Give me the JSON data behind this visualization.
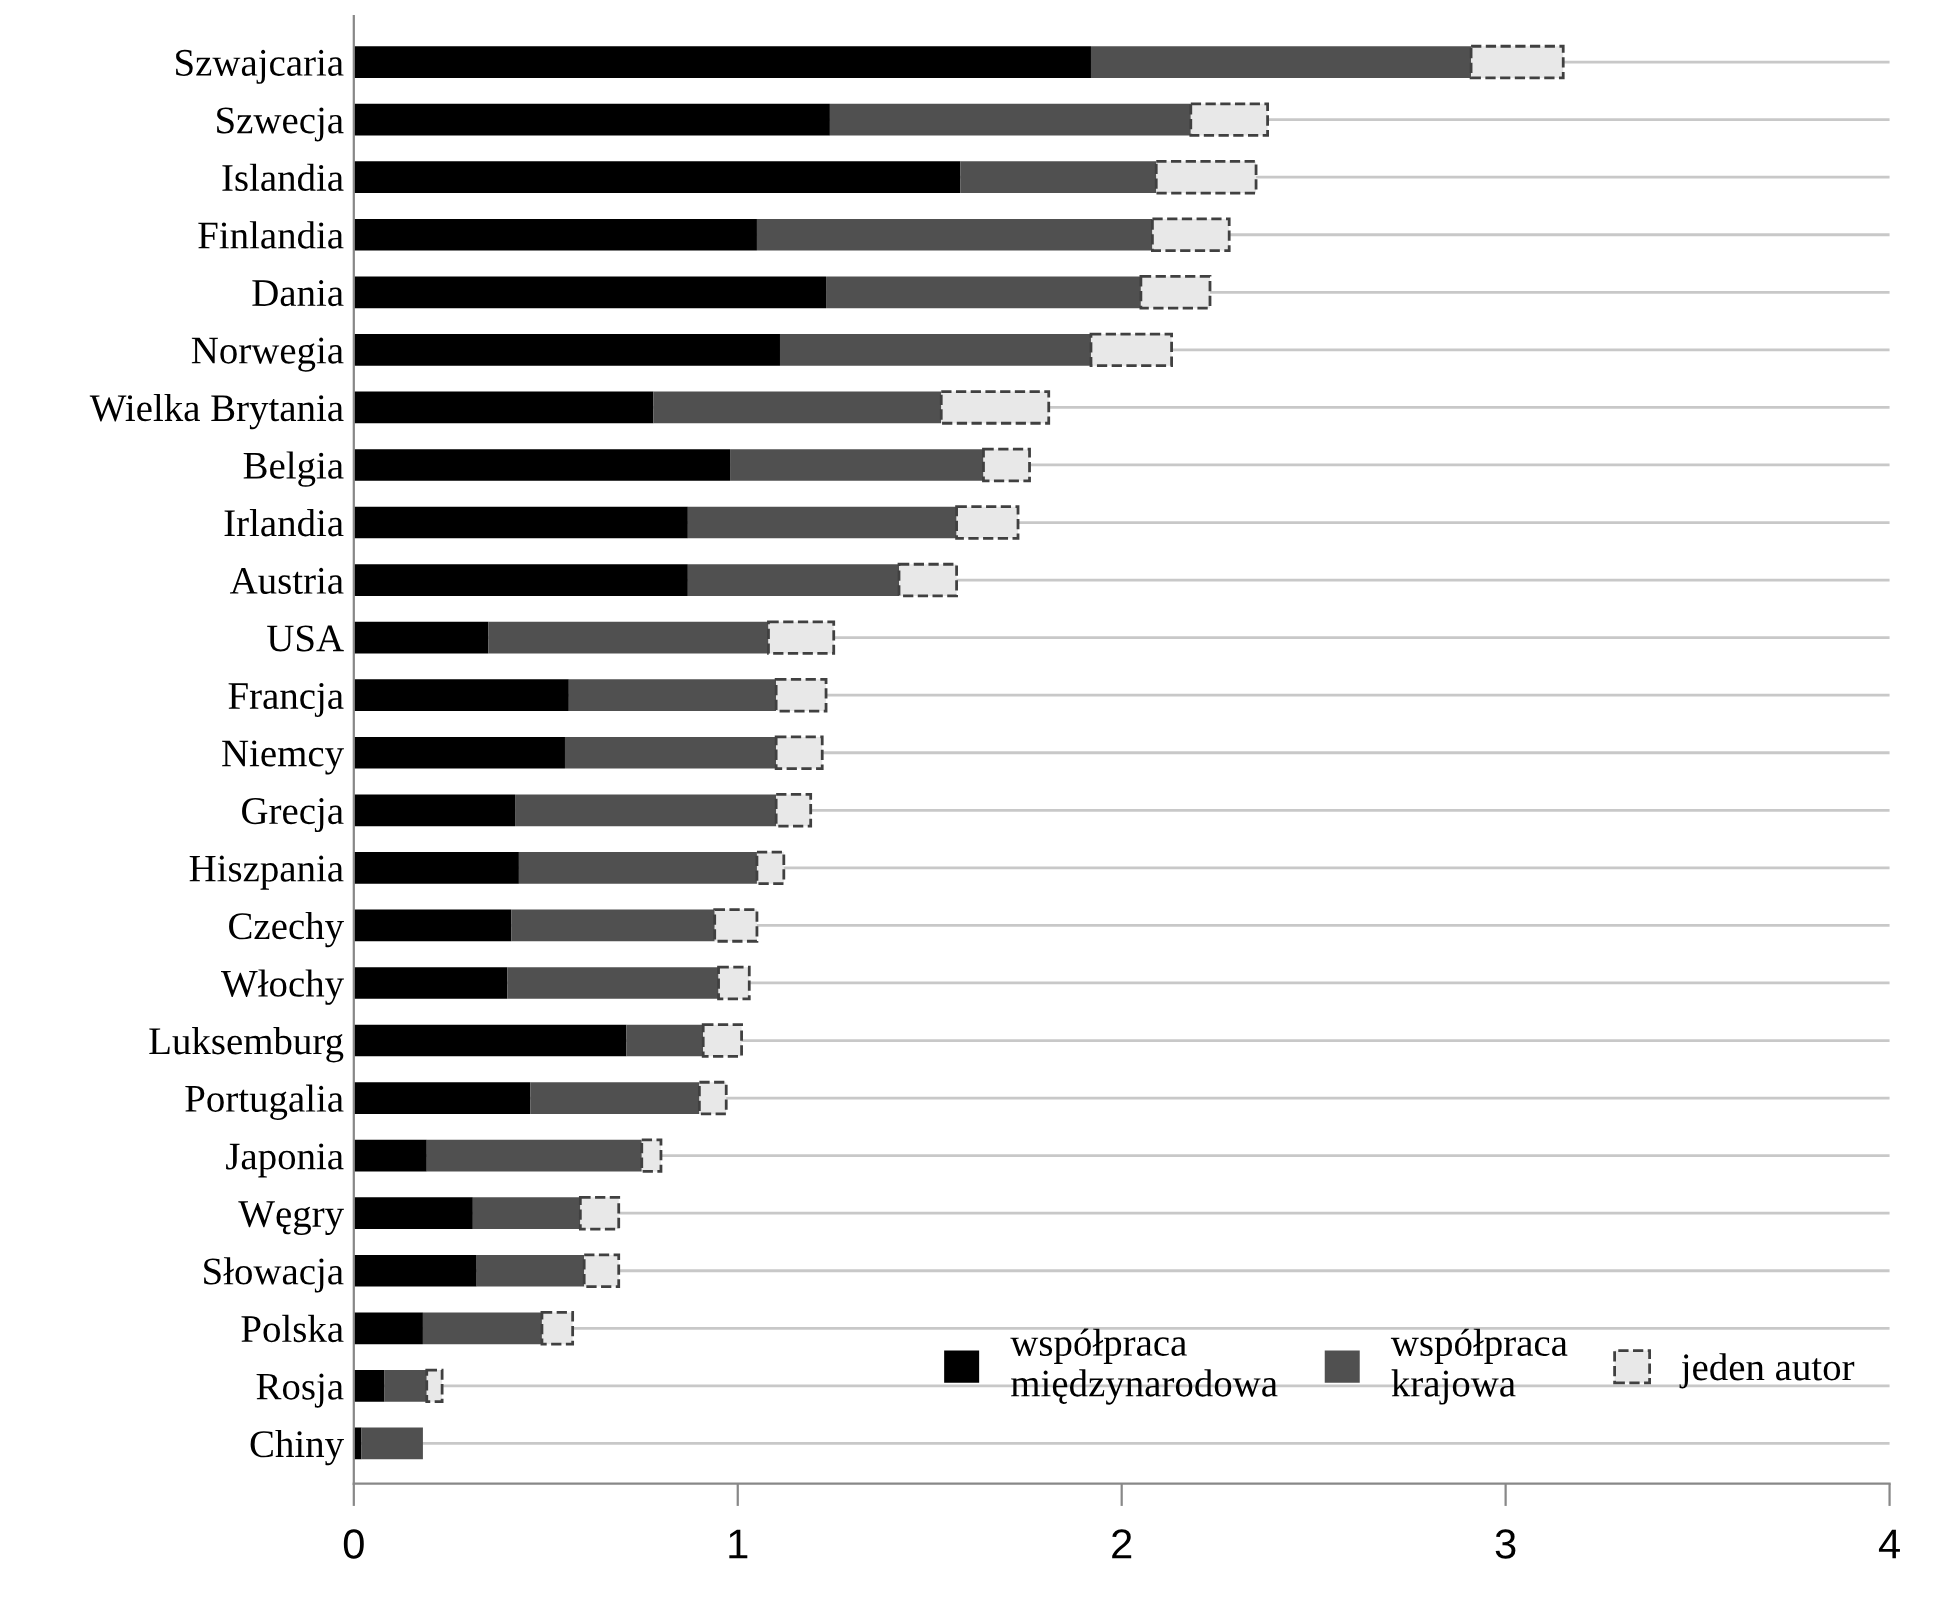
{
  "chart_data": {
    "type": "bar",
    "orientation": "horizontal",
    "stacked": true,
    "categories": [
      "Szwajcaria",
      "Szwecja",
      "Islandia",
      "Finlandia",
      "Dania",
      "Norwegia",
      "Wielka Brytania",
      "Belgia",
      "Irlandia",
      "Austria",
      "USA",
      "Francja",
      "Niemcy",
      "Grecja",
      "Hiszpania",
      "Czechy",
      "Włochy",
      "Luksemburg",
      "Portugalia",
      "Japonia",
      "Węgry",
      "Słowacja",
      "Polska",
      "Rosja",
      "Chiny"
    ],
    "series": [
      {
        "name": "współpraca\nmiędzynarodowa",
        "color": "#000000",
        "values": [
          1.92,
          1.24,
          1.58,
          1.05,
          1.23,
          1.11,
          0.78,
          0.98,
          0.87,
          0.87,
          0.35,
          0.56,
          0.55,
          0.42,
          0.43,
          0.41,
          0.4,
          0.71,
          0.46,
          0.19,
          0.31,
          0.32,
          0.18,
          0.08,
          0.02
        ]
      },
      {
        "name": "współpraca\nkrajowa",
        "color": "#505050",
        "values": [
          0.99,
          0.94,
          0.51,
          1.03,
          0.82,
          0.81,
          0.75,
          0.66,
          0.7,
          0.55,
          0.73,
          0.54,
          0.55,
          0.68,
          0.62,
          0.53,
          0.55,
          0.2,
          0.44,
          0.56,
          0.28,
          0.28,
          0.31,
          0.11,
          0.16
        ]
      },
      {
        "name": "jeden autor",
        "color": "#e8e8e8",
        "line_style": "dashed",
        "values": [
          0.24,
          0.2,
          0.26,
          0.2,
          0.18,
          0.21,
          0.28,
          0.12,
          0.16,
          0.15,
          0.17,
          0.13,
          0.12,
          0.09,
          0.07,
          0.11,
          0.08,
          0.1,
          0.07,
          0.05,
          0.1,
          0.09,
          0.08,
          0.04,
          null
        ]
      }
    ],
    "xlim": [
      0,
      4
    ],
    "xticks": [
      0,
      1,
      2,
      3,
      4
    ],
    "grid": "y",
    "legend": "bottom right"
  }
}
